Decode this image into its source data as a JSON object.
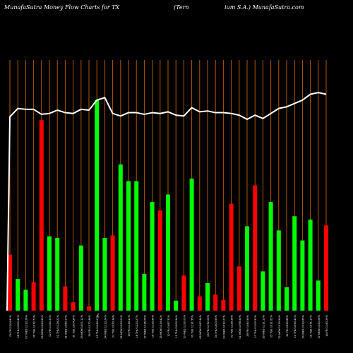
{
  "header": {
    "left_title": "MunafaSutra  Money Flow  Charts for TX",
    "mid_title": "(Tern",
    "right_title": "ium S.A.) MunafaSutra.com"
  },
  "colors": {
    "background": "#000000",
    "up": "#00ff00",
    "down": "#ff0000",
    "gridline": "#b35900",
    "line": "#ffffff",
    "text": "#ffffff"
  },
  "chart_data": {
    "type": "bar",
    "series": [
      {
        "values": [
          67,
          38,
          25,
          34,
          228,
          89,
          87,
          29,
          10,
          78,
          5,
          252,
          87,
          90,
          175,
          155,
          155,
          44,
          130,
          120,
          139,
          12,
          42,
          158,
          17,
          33,
          19,
          13,
          128,
          53,
          101,
          150,
          47,
          130,
          96,
          28,
          113,
          84,
          109,
          36,
          102
        ]
      }
    ],
    "directions": [
      "down",
      "up",
      "up",
      "down",
      "down",
      "up",
      "up",
      "down",
      "down",
      "up",
      "down",
      "up",
      "up",
      "down",
      "up",
      "up",
      "up",
      "up",
      "up",
      "down",
      "up",
      "up",
      "down",
      "up",
      "down",
      "up",
      "down",
      "down",
      "down",
      "down",
      "up",
      "down",
      "up",
      "up",
      "up",
      "up",
      "up",
      "up",
      "up",
      "up",
      "down"
    ],
    "line_values": [
      232,
      242,
      241,
      241,
      235,
      236,
      240,
      237,
      236,
      241,
      240,
      252,
      255,
      236,
      233,
      237,
      237,
      235,
      237,
      236,
      238,
      234,
      233,
      243,
      238,
      239,
      237,
      237,
      236,
      234,
      229,
      234,
      230,
      236,
      242,
      244,
      248,
      252,
      259,
      261,
      259
    ],
    "x_labels": [
      "09 FRI 1204.81%",
      "08 THU 1300.42%",
      "07 WED 1110.28%",
      "06 TUE 1072.73%",
      "05 MON 1029.55%",
      "02 FRI 1150.33%",
      "01 THU 1128.22%",
      "31 WED 1059.17%",
      "30 TUE 1004.54%",
      "29 MON 1001.12%",
      "26 FRI 1072.48%",
      "25 THU 1049.07%",
      "24 WED 1113.24%",
      "23 TUE 1029.34%",
      "22 MON 1023.01%",
      "19 FRI 1118.11%",
      "18 THU 1223.27%",
      "17 WED 1115.05%",
      "16 TUE 1129.54%",
      "15 MON 1019.42%",
      "12 FRI 1087.32%",
      "11 THU 1000.54%",
      "10 WED 1120.09%",
      "09 TUE 1131.55%",
      "08 MON 1067.44%",
      "05 FRI 1172.06%",
      "04 THU 1003.65%",
      "03 WED 1012.27%",
      "02 TUE 1128.38%",
      "01 MON 1098.50%",
      "28 FRI 1040.59%",
      "27 THU 1100.53%",
      "26 WED 1111.19%",
      "25 TUE 1011.62%",
      "22 MON 1019.99%",
      "21 FRI 1220.86%",
      "20 THU 1090.41%",
      "19 WED 1033.69%",
      "18 TUE 1071.17%",
      "17 MON 1020.08%",
      "14 FRI 1143.29%"
    ],
    "x_marker": "0%",
    "grid": true
  }
}
